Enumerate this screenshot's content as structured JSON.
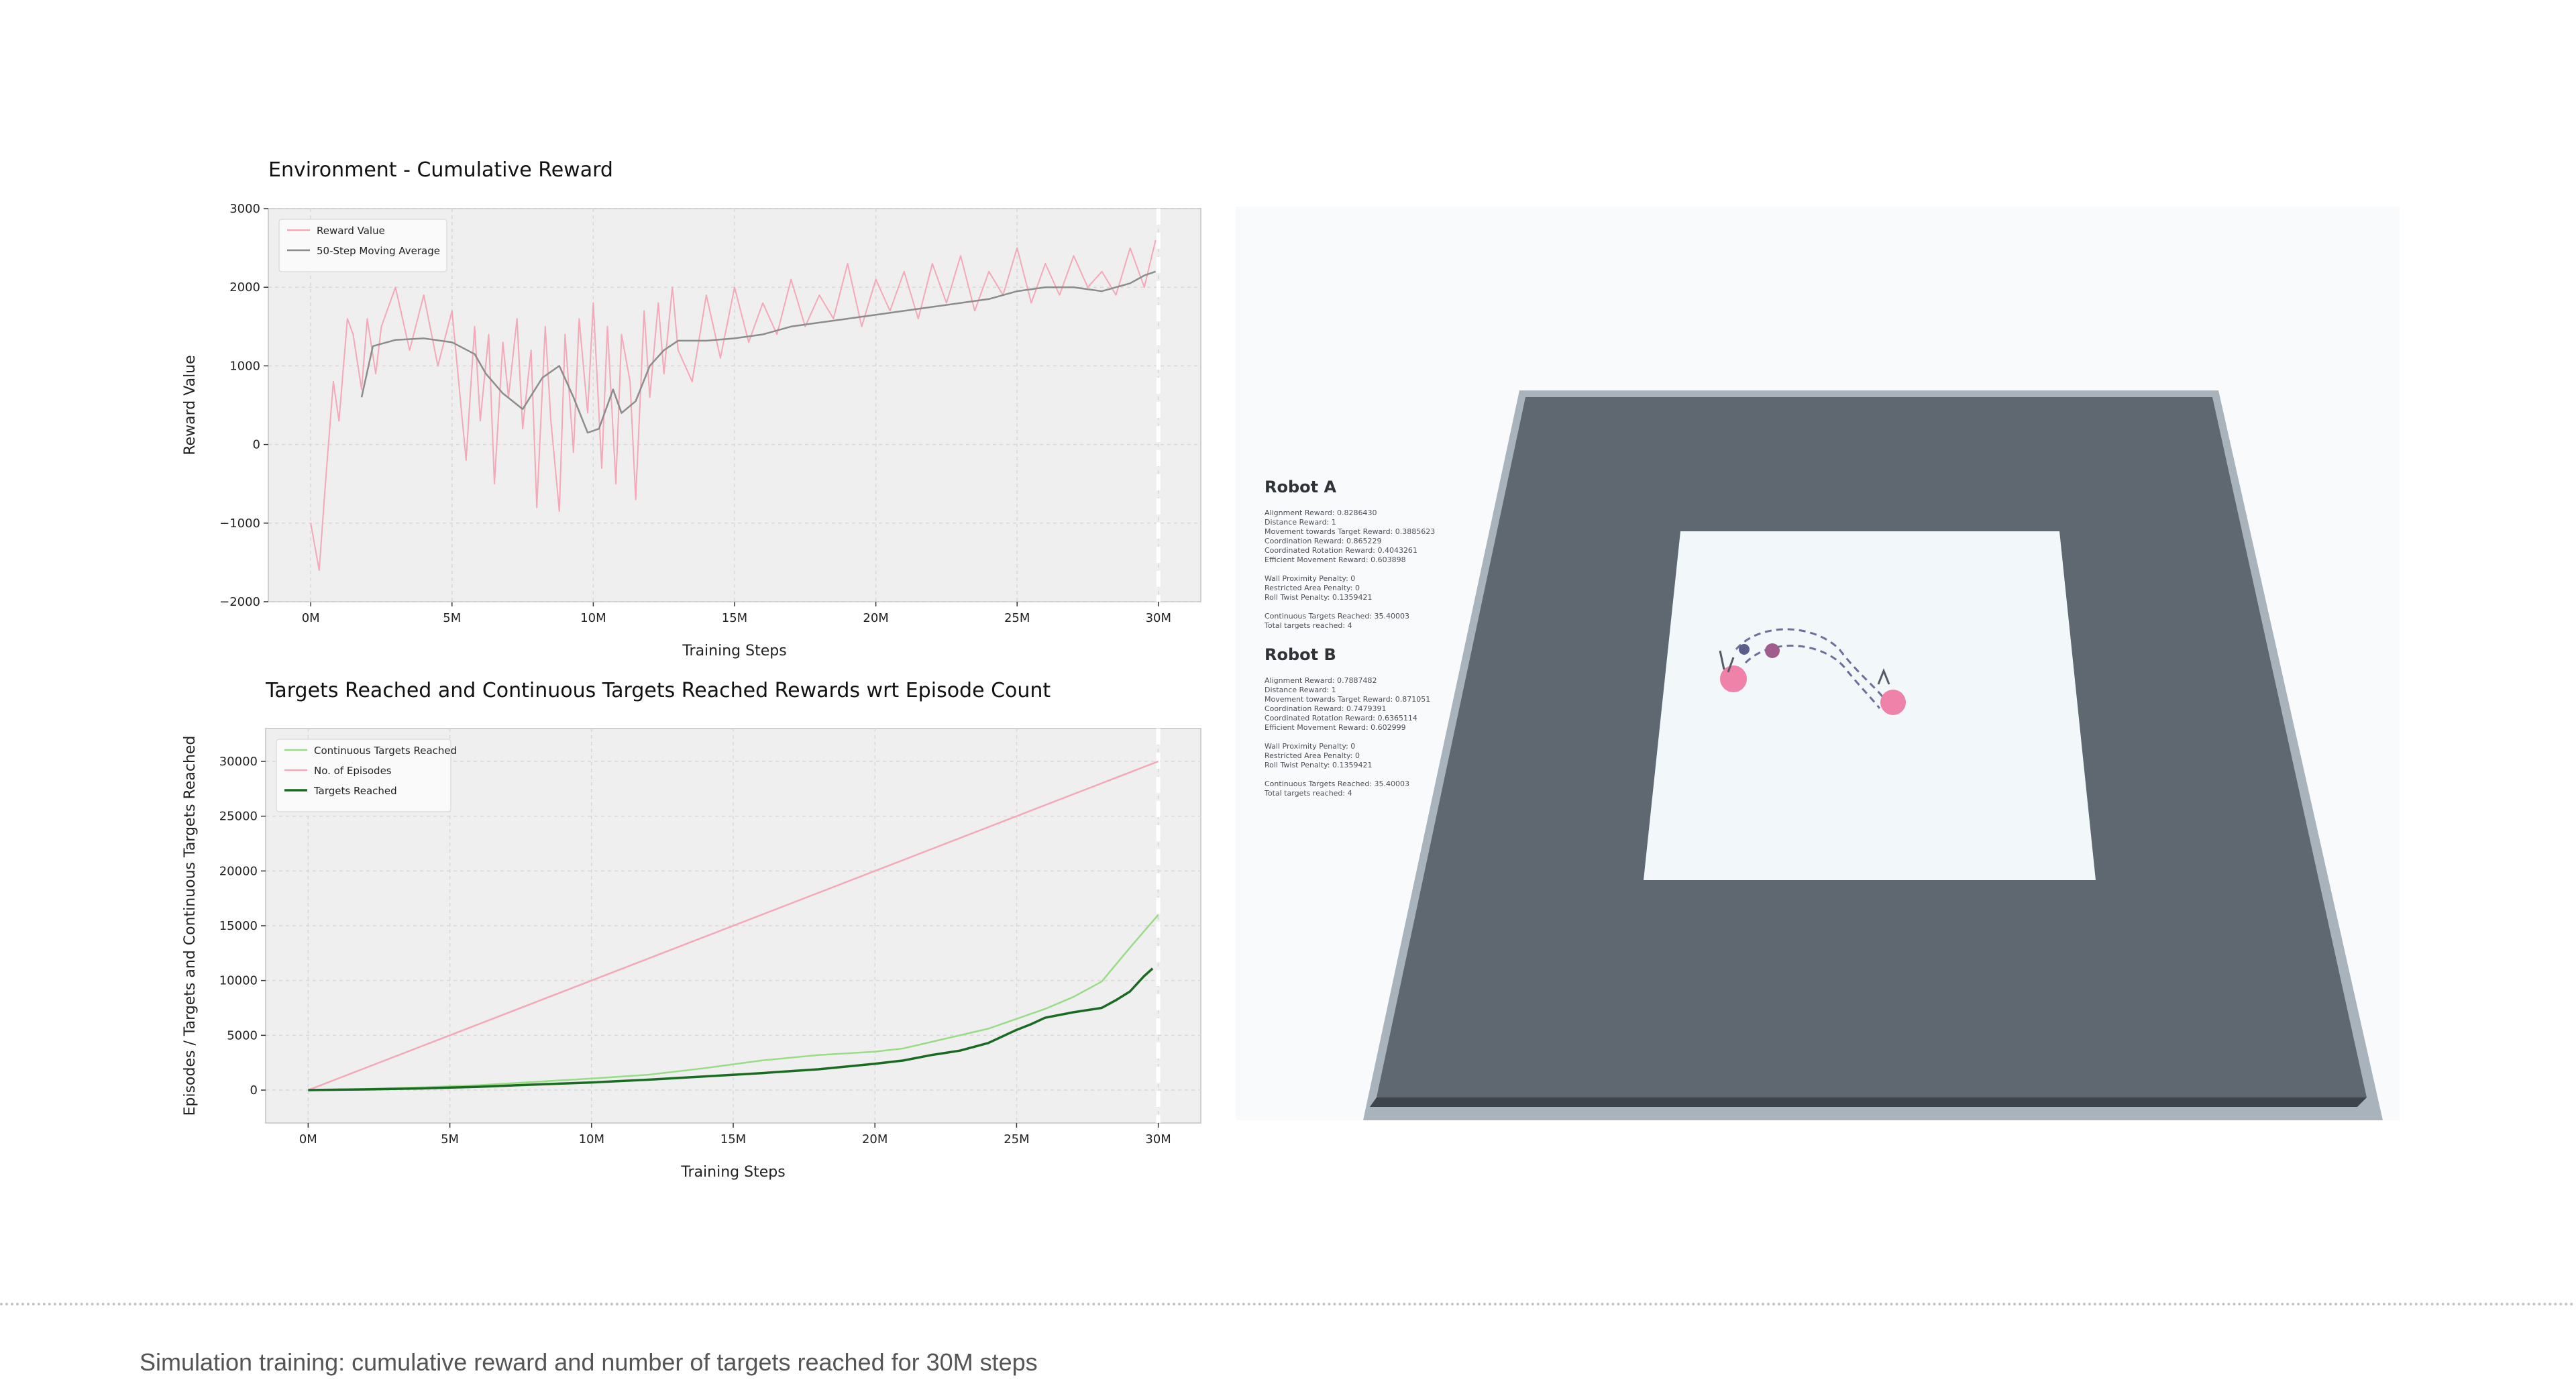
{
  "caption": "Simulation training: cumulative reward and number of targets reached for 30M steps",
  "chart_data": [
    {
      "type": "line",
      "title": "Environment - Cumulative Reward",
      "xlabel": "Training Steps",
      "ylabel": "Reward Value",
      "xlim": [
        -1.5,
        31.5
      ],
      "ylim": [
        -2000,
        3000
      ],
      "xticks": [
        0,
        5,
        10,
        15,
        20,
        25,
        30
      ],
      "xtick_labels": [
        "0M",
        "5M",
        "10M",
        "15M",
        "20M",
        "25M",
        "30M"
      ],
      "yticks": [
        -2000,
        -1000,
        0,
        1000,
        2000,
        3000
      ],
      "ytick_labels": [
        "−2000",
        "−1000",
        "0",
        "1000",
        "2000",
        "3000"
      ],
      "grid": true,
      "legend": "top-left",
      "vline_x": 30,
      "colors": {
        "reward": "#f4a8b8",
        "average": "#8c8c8c",
        "vline": "#ffffff",
        "bg": "#efefef"
      },
      "series": [
        {
          "name": "Reward Value",
          "x": [
            0,
            0.3,
            0.5,
            0.8,
            1.0,
            1.3,
            1.5,
            1.8,
            2.0,
            2.3,
            2.5,
            3.0,
            3.5,
            4.0,
            4.5,
            5.0,
            5.5,
            5.8,
            6.0,
            6.3,
            6.5,
            6.8,
            7.0,
            7.3,
            7.5,
            7.8,
            8.0,
            8.3,
            8.5,
            8.8,
            9.0,
            9.3,
            9.5,
            9.8,
            10.0,
            10.3,
            10.5,
            10.8,
            11.0,
            11.3,
            11.5,
            11.8,
            12.0,
            12.3,
            12.5,
            12.8,
            13.0,
            13.5,
            14.0,
            14.5,
            15.0,
            15.5,
            16.0,
            16.5,
            17.0,
            17.5,
            18.0,
            18.5,
            19.0,
            19.5,
            20.0,
            20.5,
            21.0,
            21.5,
            22.0,
            22.5,
            23.0,
            23.5,
            24.0,
            24.5,
            25.0,
            25.5,
            26.0,
            26.5,
            27.0,
            27.5,
            28.0,
            28.5,
            29.0,
            29.5,
            29.9
          ],
          "y": [
            -1000,
            -1600,
            -600,
            800,
            300,
            1600,
            1400,
            700,
            1600,
            900,
            1500,
            2000,
            1200,
            1900,
            1000,
            1700,
            -200,
            1500,
            300,
            1400,
            -500,
            1300,
            600,
            1600,
            200,
            1200,
            -800,
            1500,
            300,
            -850,
            1400,
            -100,
            1600,
            400,
            1800,
            -300,
            1500,
            -500,
            1400,
            800,
            -700,
            1700,
            600,
            1800,
            900,
            2000,
            1200,
            800,
            1900,
            1100,
            2000,
            1300,
            1800,
            1400,
            2100,
            1500,
            1900,
            1600,
            2300,
            1500,
            2100,
            1700,
            2200,
            1600,
            2300,
            1800,
            2400,
            1700,
            2200,
            1900,
            2500,
            1800,
            2300,
            1900,
            2400,
            2000,
            2200,
            1900,
            2500,
            2000,
            2600
          ]
        },
        {
          "name": "50-Step Moving Average",
          "x": [
            1.8,
            2.2,
            3.0,
            4.0,
            5.0,
            5.8,
            6.2,
            6.8,
            7.5,
            8.2,
            8.8,
            9.3,
            9.8,
            10.2,
            10.7,
            11.0,
            11.5,
            12.0,
            12.5,
            13.0,
            14.0,
            15.0,
            16.0,
            17.0,
            18.0,
            19.0,
            20.0,
            21.0,
            22.0,
            23.0,
            24.0,
            25.0,
            26.0,
            27.0,
            28.0,
            28.5,
            29.0,
            29.5,
            29.9
          ],
          "y": [
            600,
            1250,
            1330,
            1350,
            1300,
            1150,
            900,
            650,
            450,
            850,
            1000,
            600,
            150,
            200,
            700,
            400,
            550,
            1000,
            1200,
            1320,
            1320,
            1350,
            1400,
            1500,
            1550,
            1600,
            1650,
            1700,
            1750,
            1800,
            1850,
            1950,
            2000,
            2000,
            1950,
            2000,
            2050,
            2150,
            2200
          ]
        }
      ]
    },
    {
      "type": "line",
      "title": "Targets Reached and Continuous Targets Reached Rewards wrt Episode Count",
      "xlabel": "Training Steps",
      "ylabel": "Episodes / Targets and Continuous Targets Reached",
      "xlim": [
        -1.5,
        31.5
      ],
      "ylim": [
        -3000,
        33000
      ],
      "xticks": [
        0,
        5,
        10,
        15,
        20,
        25,
        30
      ],
      "xtick_labels": [
        "0M",
        "5M",
        "10M",
        "15M",
        "20M",
        "25M",
        "30M"
      ],
      "yticks": [
        0,
        5000,
        10000,
        15000,
        20000,
        25000,
        30000
      ],
      "ytick_labels": [
        "0",
        "5000",
        "10000",
        "15000",
        "20000",
        "25000",
        "30000"
      ],
      "grid": true,
      "legend": "top-left",
      "vline_x": 30,
      "colors": {
        "continuous": "#98dd86",
        "episodes": "#f4a8b8",
        "targets": "#1a6b22",
        "vline": "#ffffff",
        "bg": "#efefef"
      },
      "series": [
        {
          "name": "Continuous Targets Reached",
          "x": [
            0,
            2,
            4,
            6,
            8,
            10,
            12,
            14,
            16,
            18,
            20,
            21,
            22,
            24,
            25,
            26,
            27,
            28,
            29,
            30
          ],
          "y": [
            0,
            100,
            250,
            450,
            750,
            1050,
            1400,
            2000,
            2700,
            3200,
            3500,
            3800,
            4400,
            5600,
            6500,
            7400,
            8500,
            9900,
            13000,
            16000
          ]
        },
        {
          "name": "No. of Episodes",
          "x": [
            0,
            30
          ],
          "y": [
            0,
            30000
          ]
        },
        {
          "name": "Targets Reached",
          "x": [
            0,
            2,
            4,
            6,
            8,
            10,
            12,
            14,
            16,
            18,
            20,
            21,
            22,
            23,
            24,
            25,
            25.5,
            26,
            27,
            28,
            28.5,
            29,
            29.5,
            29.8
          ],
          "y": [
            0,
            60,
            150,
            300,
            500,
            700,
            950,
            1250,
            1550,
            1900,
            2400,
            2700,
            3200,
            3600,
            4300,
            5500,
            6000,
            6600,
            7100,
            7500,
            8200,
            9000,
            10400,
            11100
          ]
        }
      ]
    }
  ],
  "simulation": {
    "colors": {
      "floor": "#5f6770",
      "floor_dark": "#3d444c",
      "rim": "#a8b3bc",
      "target_area": "#f2f8fa",
      "robot": "#ee82a8",
      "robot_dark": "#a05c8c",
      "path": "#6b6f9a"
    },
    "robot_a": {
      "title": "Robot A",
      "lines": [
        "Alignment Reward: 0.8286430",
        "Distance Reward: 1",
        "Movement towards Target Reward: 0.3885623",
        "Coordination Reward: 0.865229",
        "Coordinated Rotation Reward: 0.4043261",
        "Efficient Movement Reward: 0.603898",
        "",
        "Wall Proximity Penalty: 0",
        "Restricted Area Penalty: 0",
        "Roll Twist Penalty: 0.1359421",
        "",
        "Continuous Targets Reached: 35.40003",
        "Total targets reached: 4"
      ]
    },
    "robot_b": {
      "title": "Robot B",
      "lines": [
        "Alignment Reward: 0.7887482",
        "Distance Reward: 1",
        "Movement towards Target Reward: 0.871051",
        "Coordination Reward: 0.7479391",
        "Coordinated Rotation Reward: 0.6365114",
        "Efficient Movement Reward: 0.602999",
        "",
        "Wall Proximity Penalty: 0",
        "Restricted Area Penalty: 0",
        "Roll Twist Penalty: 0.1359421",
        "",
        "Continuous Targets Reached: 35.40003",
        "Total targets reached: 4"
      ]
    }
  }
}
